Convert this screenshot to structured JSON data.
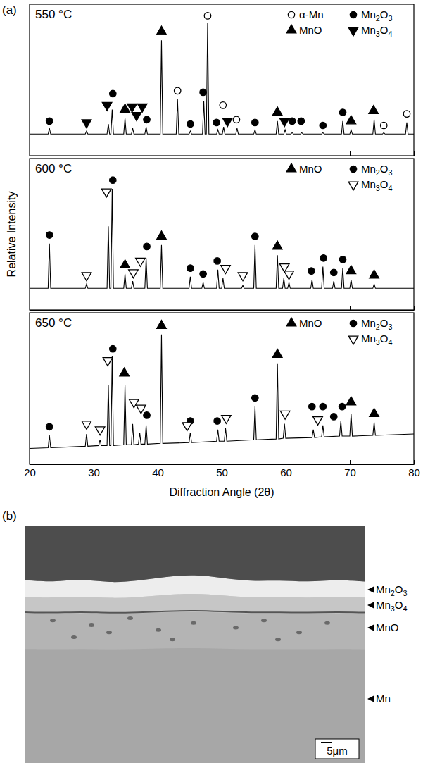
{
  "chart_data": [
    {
      "type": "line",
      "panel_label": "(a)",
      "title": "550 °C",
      "xlim": [
        20,
        80
      ],
      "ylim": [
        0,
        105
      ],
      "xticks": [
        20,
        30,
        40,
        50,
        60,
        70,
        80
      ],
      "tick_labels": false,
      "grid": false,
      "legend": "upper right",
      "series": [
        {
          "type": "line",
          "color": "#000000",
          "x": [
            20,
            22.9,
            23.1,
            23.3,
            28.7,
            28.9,
            29.1,
            32.1,
            32.3,
            32.5,
            32.7,
            32.9,
            33.1,
            34.7,
            34.9,
            35.1,
            35.9,
            36.1,
            36.3,
            38.0,
            38.2,
            38.4,
            40.4,
            40.6,
            40.8,
            42.9,
            43.1,
            43.3,
            44.9,
            45.1,
            45.3,
            47.0,
            47.2,
            47.4,
            47.6,
            47.8,
            48.0,
            49.2,
            49.4,
            49.6,
            50.1,
            50.3,
            50.5,
            52.2,
            52.4,
            52.6,
            55.0,
            55.2,
            55.4,
            58.5,
            58.7,
            58.9,
            59.7,
            59.9,
            60.1,
            60.8,
            61.0,
            61.2,
            62.3,
            62.5,
            62.7,
            65.6,
            65.8,
            66.0,
            68.7,
            68.9,
            69.1,
            70.0,
            70.2,
            70.4,
            73.6,
            73.8,
            74.0,
            75.1,
            75.3,
            75.5,
            78.7,
            78.9,
            79.1,
            80
          ],
          "values": [
            15,
            15,
            19,
            15,
            15,
            17,
            15,
            15,
            22,
            15,
            15,
            32,
            15,
            15,
            26,
            15,
            15,
            19,
            15,
            15,
            20,
            15,
            15,
            80,
            15,
            15,
            39,
            15,
            15,
            17,
            15,
            15,
            38,
            15,
            15,
            92,
            15,
            15,
            18,
            15,
            15,
            20,
            15,
            15,
            19,
            15,
            15,
            18,
            15,
            15,
            24,
            15,
            15,
            18,
            15,
            15,
            16,
            15,
            15,
            16,
            15,
            15,
            16,
            15,
            15,
            24,
            15,
            15,
            18,
            15,
            15,
            25,
            15,
            15,
            16,
            15,
            15,
            23,
            15,
            15
          ]
        },
        {
          "name": "α-Mn",
          "type": "scatter",
          "marker": "open-circle",
          "color": "#000000",
          "x": [
            43.1,
            47.8,
            50.2,
            52.3,
            75.3,
            78.9
          ],
          "values": [
            45,
            97,
            35,
            25,
            21,
            29
          ]
        },
        {
          "name": "Mn2O3",
          "type": "scatter",
          "marker": "circle",
          "color": "#000000",
          "x": [
            23.1,
            33.0,
            38.3,
            45.1,
            47.1,
            49.2,
            55.2,
            61.0,
            62.4,
            65.8,
            68.9
          ],
          "values": [
            24,
            43,
            25,
            22,
            44,
            23,
            23,
            24,
            24,
            21,
            30
          ]
        },
        {
          "name": "MnO",
          "type": "scatter",
          "marker": "triangle-up",
          "color": "#000000",
          "x": [
            34.9,
            40.6,
            58.7,
            70.2,
            73.7
          ],
          "values": [
            32,
            86,
            30,
            24,
            31
          ]
        },
        {
          "name": "Mn3O4",
          "type": "scatter",
          "marker": "triangle-down",
          "color": "#000000",
          "x": [
            28.9,
            32.1,
            36.0,
            36.7,
            37.6,
            50.9,
            59.8
          ],
          "values": [
            23,
            35,
            34,
            28,
            34,
            24,
            24
          ]
        }
      ]
    },
    {
      "type": "line",
      "title": "600 °C",
      "y_label": "Relative Intensity",
      "xlim": [
        20,
        80
      ],
      "ylim": [
        0,
        105
      ],
      "xticks": [
        20,
        30,
        40,
        50,
        60,
        70,
        80
      ],
      "tick_labels": false,
      "grid": false,
      "legend": "upper right",
      "series": [
        {
          "type": "line",
          "color": "#000000",
          "x": [
            20,
            22.9,
            23.1,
            23.3,
            28.7,
            28.9,
            29.1,
            32.1,
            32.3,
            32.5,
            32.7,
            32.9,
            33.1,
            34.7,
            34.9,
            35.1,
            35.9,
            36.1,
            36.3,
            38.0,
            38.2,
            38.4,
            40.4,
            40.6,
            40.8,
            44.9,
            45.1,
            45.3,
            46.9,
            47.1,
            47.3,
            49.2,
            49.4,
            49.6,
            50.0,
            50.2,
            50.4,
            53.1,
            53.3,
            53.5,
            55.0,
            55.2,
            55.4,
            58.5,
            58.7,
            58.9,
            59.5,
            59.7,
            59.9,
            60.3,
            60.5,
            60.7,
            63.9,
            64.1,
            64.3,
            65.6,
            65.8,
            66.0,
            67.3,
            67.5,
            67.7,
            68.7,
            68.9,
            69.1,
            70.0,
            70.2,
            70.4,
            73.6,
            73.8,
            74.0,
            80
          ],
          "values": [
            15,
            15,
            46,
            15,
            15,
            18,
            15,
            15,
            58,
            15,
            15,
            84,
            15,
            15,
            25,
            15,
            15,
            20,
            15,
            15,
            36,
            15,
            15,
            45,
            15,
            15,
            23,
            15,
            15,
            19,
            15,
            15,
            28,
            15,
            15,
            22,
            15,
            15,
            17,
            15,
            15,
            45,
            15,
            15,
            38,
            15,
            15,
            22,
            15,
            15,
            19,
            15,
            15,
            21,
            15,
            15,
            30,
            15,
            15,
            20,
            15,
            15,
            29,
            15,
            15,
            21,
            15,
            15,
            18,
            15,
            15
          ]
        },
        {
          "name": "MnO",
          "type": "scatter",
          "marker": "triangle-up",
          "color": "#000000",
          "x": [
            34.9,
            40.6,
            58.7,
            70.2,
            73.8
          ],
          "values": [
            31,
            51,
            44,
            27,
            24
          ]
        },
        {
          "name": "Mn2O3",
          "type": "scatter",
          "marker": "circle",
          "color": "#000000",
          "x": [
            23.1,
            33.0,
            38.3,
            45.1,
            47.1,
            49.3,
            55.2,
            64.0,
            65.9,
            67.5,
            68.9
          ],
          "values": [
            52,
            90,
            44,
            29,
            25,
            34,
            51,
            27,
            36,
            26,
            35
          ]
        },
        {
          "name": "Mn3O4",
          "type": "scatter",
          "marker": "open-triangle-down",
          "color": "#000000",
          "x": [
            28.9,
            32.0,
            36.2,
            37.3,
            50.6,
            53.3,
            59.8,
            60.5
          ],
          "values": [
            24,
            82,
            26,
            34,
            29,
            24,
            30,
            25
          ]
        }
      ]
    },
    {
      "type": "line",
      "title": "650 °C",
      "x_label": "Diffraction Angle (2θ)",
      "xlim": [
        20,
        80
      ],
      "ylim": [
        0,
        105
      ],
      "xticks": [
        20,
        30,
        40,
        50,
        60,
        70,
        80
      ],
      "tick_labels": "x",
      "grid": false,
      "legend": "upper right",
      "series": [
        {
          "type": "line",
          "color": "#000000",
          "x": [
            20,
            22.9,
            23.1,
            23.3,
            28.7,
            28.9,
            29.1,
            30.8,
            31.0,
            31.2,
            32.1,
            32.3,
            32.5,
            32.7,
            32.9,
            33.1,
            34.7,
            34.9,
            35.1,
            35.9,
            36.1,
            36.3,
            37.0,
            37.2,
            37.4,
            38.0,
            38.2,
            38.4,
            40.4,
            40.6,
            40.8,
            44.9,
            45.1,
            45.3,
            49.2,
            49.4,
            49.6,
            50.4,
            50.6,
            50.8,
            55.0,
            55.2,
            55.4,
            58.5,
            58.7,
            58.9,
            59.6,
            59.8,
            60.0,
            64.1,
            64.3,
            64.5,
            65.6,
            65.8,
            66.0,
            68.4,
            68.6,
            68.8,
            70.0,
            70.2,
            70.4,
            73.6,
            73.8,
            74.0,
            80
          ],
          "values": [
            11,
            11.5,
            20,
            11.5,
            12.5,
            21,
            12.5,
            13,
            17,
            13,
            13,
            55,
            13,
            13,
            75,
            13,
            13.5,
            55,
            13.5,
            13.5,
            28,
            13.5,
            14,
            22,
            14,
            14,
            27,
            14,
            14.5,
            90,
            14.5,
            15,
            22,
            15,
            16,
            24,
            16,
            16,
            25,
            16,
            17,
            40,
            17,
            17.5,
            70,
            17.5,
            18,
            28,
            18,
            18.5,
            24,
            18.5,
            19,
            27,
            19,
            19.5,
            30,
            19.5,
            19.5,
            35,
            19.5,
            20,
            29,
            20,
            21
          ]
        },
        {
          "name": "MnO",
          "type": "scatter",
          "marker": "triangle-up",
          "color": "#000000",
          "x": [
            34.8,
            40.6,
            58.7,
            70.2,
            73.8
          ],
          "values": [
            63,
            96,
            76,
            43,
            35
          ]
        },
        {
          "name": "Mn2O3",
          "type": "scatter",
          "marker": "circle",
          "color": "#000000",
          "x": [
            23.1,
            33.0,
            38.3,
            45.1,
            49.3,
            55.2,
            64.1,
            65.8,
            67.5,
            68.8
          ],
          "values": [
            26,
            80,
            34,
            30,
            30,
            46,
            40,
            40,
            33,
            40
          ]
        },
        {
          "name": "Mn3O4",
          "type": "scatter",
          "marker": "open-triangle-down",
          "color": "#000000",
          "x": [
            28.9,
            31.0,
            32.2,
            36.3,
            37.4,
            44.6,
            50.7,
            59.9,
            65.0
          ],
          "values": [
            28,
            24,
            72,
            43,
            39,
            27,
            32,
            35,
            31
          ]
        }
      ]
    }
  ],
  "micrograph": {
    "panel_label": "(b)",
    "layers": [
      "Mn2O3",
      "Mn3O4",
      "MnO",
      "Mn"
    ],
    "scale_bar": "5μm"
  }
}
